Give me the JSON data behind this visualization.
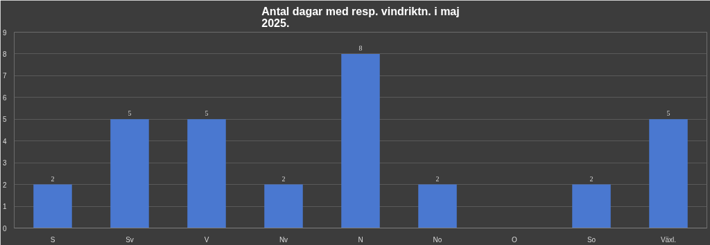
{
  "chart_data": {
    "type": "bar",
    "title": "Antal dagar med resp. vindriktn. i maj 2025.",
    "categories": [
      "S",
      "Sv",
      "V",
      "Nv",
      "N",
      "No",
      "O",
      "So",
      "Växl."
    ],
    "values": [
      2,
      5,
      5,
      2,
      8,
      2,
      0,
      2,
      5
    ],
    "color": "#4a78d0",
    "value_labels": [
      "2",
      "5",
      "5",
      "2",
      "8",
      "2",
      null,
      "2",
      "5"
    ],
    "ylim": [
      0,
      9
    ],
    "yticks": [
      0,
      1,
      2,
      3,
      4,
      5,
      6,
      7,
      8,
      9
    ],
    "grid": "y"
  }
}
